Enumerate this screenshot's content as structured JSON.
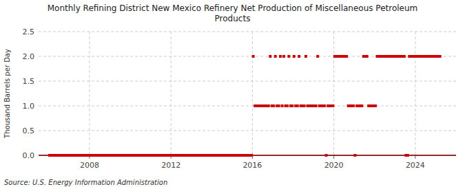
{
  "chart_data": {
    "type": "scatter",
    "title": "Monthly Refining District New Mexico Refinery Net Production of Miscellaneous Petroleum\nProducts",
    "ylabel": "Thousand Barrels per Day",
    "source": "Source: U.S. Energy Information Administration",
    "color": "#cc0000",
    "marker": "square",
    "grid": true,
    "lines": [
      {
        "y": 0,
        "color": "#8b0000"
      }
    ],
    "xlim": [
      2005.5,
      2026.0
    ],
    "xticks": [
      2008,
      2012,
      2016,
      2020,
      2024
    ],
    "ylim": [
      0,
      2.5
    ],
    "yticks": [
      {
        "value": 0,
        "label": "0.0"
      },
      0.5,
      {
        "value": 1,
        "label": "1.0"
      },
      1.5,
      {
        "value": 2,
        "label": "2.0"
      },
      2.5
    ],
    "x": [
      2006.0416666666667,
      2006.125,
      2006.2083333333333,
      2006.2916666666667,
      2006.375,
      2006.4583333333333,
      2006.5416666666667,
      2006.625,
      2006.7083333333333,
      2006.7916666666667,
      2006.875,
      2006.9583333333333,
      2007.0416666666667,
      2007.125,
      2007.2083333333333,
      2007.2916666666667,
      2007.375,
      2007.4583333333333,
      2007.5416666666667,
      2007.625,
      2007.7083333333333,
      2007.7916666666667,
      2007.875,
      2007.9583333333333,
      2008.0416666666667,
      2008.125,
      2008.2083333333333,
      2008.2916666666667,
      2008.375,
      2008.4583333333333,
      2008.5416666666667,
      2008.625,
      2008.7083333333333,
      2008.7916666666667,
      2008.875,
      2008.9583333333333,
      2009.0416666666667,
      2009.125,
      2009.2083333333333,
      2009.2916666666667,
      2009.375,
      2009.4583333333333,
      2009.5416666666667,
      2009.625,
      2009.7083333333333,
      2009.7916666666667,
      2009.875,
      2009.9583333333333,
      2010.0416666666667,
      2010.125,
      2010.2083333333333,
      2010.2916666666667,
      2010.375,
      2010.4583333333333,
      2010.5416666666667,
      2010.625,
      2010.7083333333333,
      2010.7916666666667,
      2010.875,
      2010.9583333333333,
      2011.0416666666667,
      2011.125,
      2011.2083333333333,
      2011.2916666666667,
      2011.375,
      2011.4583333333333,
      2011.5416666666667,
      2011.625,
      2011.7083333333333,
      2011.7916666666667,
      2011.875,
      2011.9583333333333,
      2012.0416666666667,
      2012.125,
      2012.2083333333333,
      2012.2916666666667,
      2012.375,
      2012.4583333333333,
      2012.5416666666667,
      2012.625,
      2012.7083333333333,
      2012.7916666666667,
      2012.875,
      2012.9583333333333,
      2013.0416666666667,
      2013.125,
      2013.2083333333333,
      2013.2916666666667,
      2013.375,
      2013.4583333333333,
      2013.5416666666667,
      2013.625,
      2013.7083333333333,
      2013.7916666666667,
      2013.875,
      2013.9583333333333,
      2014.0416666666667,
      2014.125,
      2014.2083333333333,
      2014.2916666666667,
      2014.375,
      2014.4583333333333,
      2014.5416666666667,
      2014.625,
      2014.7083333333333,
      2014.7916666666667,
      2014.875,
      2014.9583333333333,
      2015.0416666666667,
      2015.125,
      2015.2083333333333,
      2015.2916666666667,
      2015.375,
      2015.4583333333333,
      2015.5416666666667,
      2015.625,
      2015.7083333333333,
      2015.7916666666667,
      2015.875,
      2015.9583333333333,
      2016.0416666666667,
      2016.125,
      2016.2083333333333,
      2016.2916666666667,
      2016.375,
      2016.4583333333333,
      2016.5416666666667,
      2016.625,
      2016.7083333333333,
      2016.7916666666667,
      2016.875,
      2016.9583333333333,
      2017.0416666666667,
      2017.125,
      2017.2083333333333,
      2017.2916666666667,
      2017.375,
      2017.4583333333333,
      2017.5416666666667,
      2017.625,
      2017.7083333333333,
      2017.7916666666667,
      2017.875,
      2017.9583333333333,
      2018.0416666666667,
      2018.125,
      2018.2083333333333,
      2018.2916666666667,
      2018.375,
      2018.4583333333333,
      2018.5416666666667,
      2018.625,
      2018.7083333333333,
      2018.7916666666667,
      2018.875,
      2018.9583333333333,
      2019.0416666666667,
      2019.125,
      2019.2083333333333,
      2019.2916666666667,
      2019.375,
      2019.4583333333333,
      2019.5416666666667,
      2019.625,
      2019.7083333333333,
      2019.7916666666667,
      2019.875,
      2019.9583333333333,
      2020.0416666666667,
      2020.125,
      2020.2083333333333,
      2020.2916666666667,
      2020.375,
      2020.4583333333333,
      2020.5416666666667,
      2020.625,
      2020.7083333333333,
      2020.7916666666667,
      2020.875,
      2020.9583333333333,
      2021.0416666666667,
      2021.125,
      2021.2083333333333,
      2021.2916666666667,
      2021.375,
      2021.4583333333333,
      2021.5416666666667,
      2021.625,
      2021.7083333333333,
      2021.7916666666667,
      2021.875,
      2021.9583333333333,
      2022.0416666666667,
      2022.125,
      2022.2083333333333,
      2022.2916666666667,
      2022.375,
      2022.4583333333333,
      2022.5416666666667,
      2022.625,
      2022.7083333333333,
      2022.7916666666667,
      2022.875,
      2022.9583333333333,
      2023.0416666666667,
      2023.125,
      2023.2083333333333,
      2023.2916666666667,
      2023.375,
      2023.4583333333333,
      2023.5416666666667,
      2023.625,
      2023.7083333333333,
      2023.7916666666667,
      2023.875,
      2023.9583333333333,
      2024.0416666666667,
      2024.125,
      2024.2083333333333,
      2024.2916666666667,
      2024.375,
      2024.4583333333333,
      2024.5416666666667,
      2024.625,
      2024.7083333333333,
      2024.7916666666667,
      2024.875,
      2024.9583333333333,
      2025.0416666666667,
      2025.125,
      2025.2083333333333
    ],
    "values": [
      0,
      0,
      0,
      0,
      0,
      0,
      0,
      0,
      0,
      0,
      0,
      0,
      0,
      0,
      0,
      0,
      0,
      0,
      0,
      0,
      0,
      0,
      0,
      0,
      0,
      0,
      0,
      0,
      0,
      0,
      0,
      0,
      0,
      0,
      0,
      0,
      0,
      0,
      0,
      0,
      0,
      0,
      0,
      0,
      0,
      0,
      0,
      0,
      0,
      0,
      0,
      0,
      0,
      0,
      0,
      0,
      0,
      0,
      0,
      0,
      0,
      0,
      0,
      0,
      0,
      0,
      0,
      0,
      0,
      0,
      0,
      0,
      0,
      0,
      0,
      0,
      0,
      0,
      0,
      0,
      0,
      0,
      0,
      0,
      0,
      0,
      0,
      0,
      0,
      0,
      0,
      0,
      0,
      0,
      0,
      0,
      0,
      0,
      0,
      0,
      0,
      0,
      0,
      0,
      0,
      0,
      0,
      0,
      0,
      0,
      0,
      0,
      0,
      0,
      0,
      0,
      0,
      0,
      0,
      0,
      2,
      1,
      1,
      1,
      1,
      1,
      1,
      1,
      1,
      1,
      2,
      1,
      1,
      2,
      1,
      1,
      2,
      1,
      2,
      1,
      1,
      2,
      1,
      1,
      2,
      1,
      1,
      2,
      1,
      1,
      1,
      2,
      1,
      1,
      1,
      1,
      1,
      1,
      2,
      1,
      1,
      1,
      1,
      0,
      1,
      1,
      1,
      1,
      2,
      2,
      2,
      2,
      2,
      2,
      2,
      2,
      1,
      1,
      1,
      1,
      0,
      1,
      1,
      1,
      1,
      2,
      2,
      2,
      1,
      1,
      1,
      1,
      1,
      2,
      2,
      2,
      2,
      2,
      2,
      2,
      2,
      2,
      2,
      2,
      2,
      2,
      2,
      2,
      2,
      2,
      0,
      0,
      2,
      2,
      2,
      2,
      2,
      2,
      2,
      2,
      2,
      2,
      2,
      2,
      2,
      2,
      2,
      2,
      2,
      2,
      2
    ]
  }
}
